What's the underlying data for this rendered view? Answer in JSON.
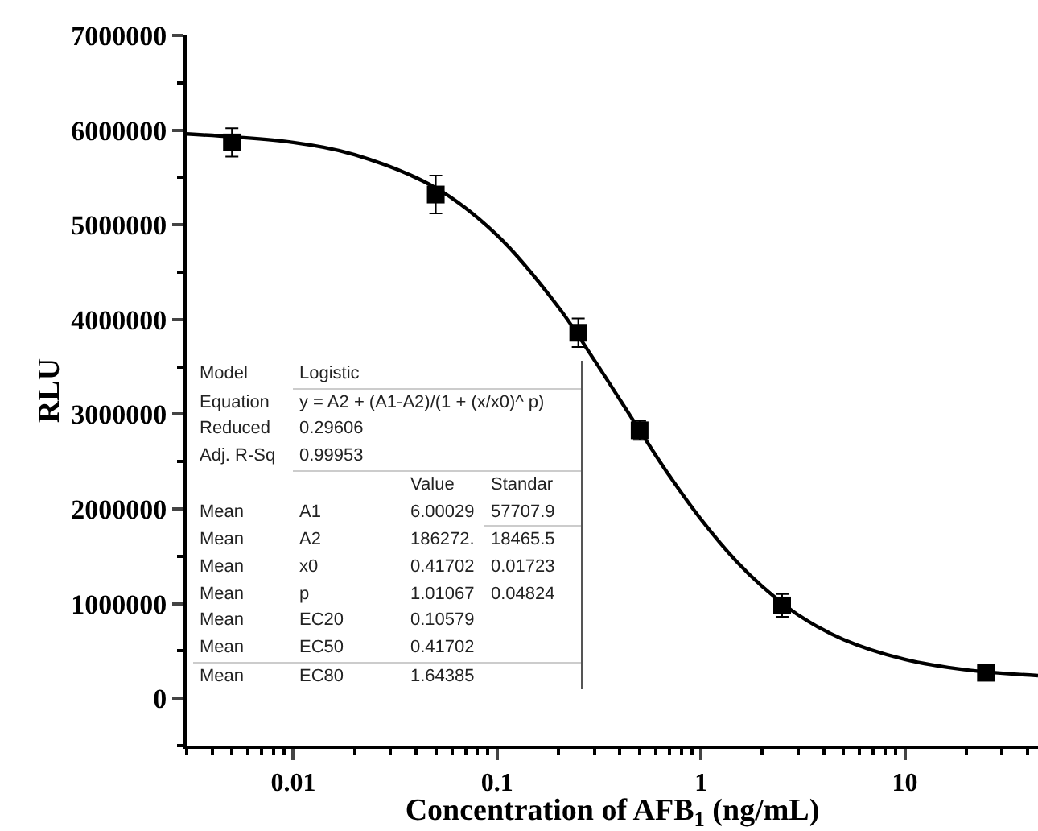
{
  "chart_data": {
    "type": "scatter",
    "xlabel": "Concentration of AFB$_{1}$ (ng/mL)",
    "ylabel": "RLU",
    "log": "x",
    "grid": false,
    "marker": "square",
    "xlim": [
      0.003,
      45
    ],
    "xticks": [
      0.01,
      0.1,
      1,
      10
    ],
    "ylim": [
      -500000,
      7000000
    ],
    "yticks": [
      0,
      1000000,
      2000000,
      3000000,
      4000000,
      5000000,
      6000000,
      7000000
    ],
    "series": [
      {
        "color": "#000000",
        "x": [
          0.005,
          0.05,
          0.25,
          0.5,
          2.5,
          25
        ],
        "values": [
          5870000,
          5320000,
          3860000,
          2830000,
          980000,
          270000
        ],
        "errors": [
          150000,
          200000,
          150000,
          100000,
          120000,
          30000
        ]
      },
      {
        "type": "line",
        "marker": "none",
        "color": "#000000",
        "x": [
          0.003,
          0.005,
          0.01,
          0.02,
          0.05,
          0.1,
          0.2,
          0.3,
          0.5,
          0.7,
          1,
          1.5,
          2,
          3,
          5,
          10,
          20,
          45
        ],
        "values": [
          5960000,
          5930000,
          5870000,
          5740000,
          5390000,
          4890000,
          4130000,
          3570000,
          2830000,
          2350000,
          1890000,
          1440000,
          1180000,
          880000,
          620000,
          410000,
          300000,
          240000
        ]
      }
    ],
    "annotations": [
      "Model",
      "Logistic",
      "Equation",
      "y = A2 + (A1-A2)/(1 + (x/x0)^ p)",
      "Reduced",
      "0.29606",
      "Adj. R-Sq",
      "0.99953",
      "Value",
      "Standar",
      "Mean",
      "A1",
      "6.00029",
      "57707.9",
      "Mean",
      "A2",
      "186272.",
      "18465.5",
      "Mean",
      "x0",
      "0.41702",
      "0.01723",
      "Mean",
      "p",
      "1.01067",
      "0.04824",
      "Mean",
      "EC20",
      "0.10579",
      "Mean",
      "EC50",
      "0.41702",
      "Mean",
      "EC80",
      "1.64385"
    ]
  }
}
